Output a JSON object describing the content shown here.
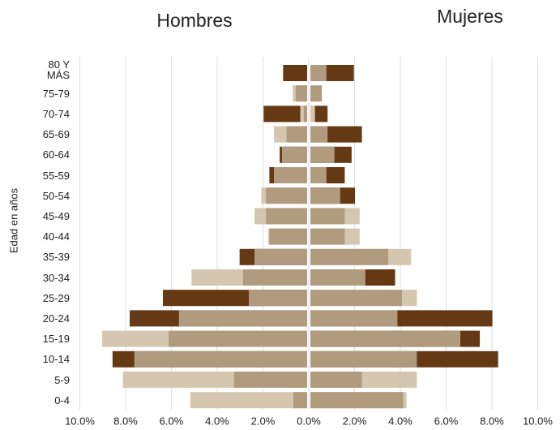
{
  "chart_data": {
    "type": "pyramid",
    "left_title": "Hombres",
    "right_title": "Mujeres",
    "y_label": "Edad en años",
    "categories": [
      "80 Y MÁS",
      "75-79",
      "70-74",
      "65-69",
      "60-64",
      "55-59",
      "50-54",
      "45-49",
      "40-44",
      "35-39",
      "30-34",
      "25-29",
      "20-24",
      "15-19",
      "10-14",
      "5-9",
      "0-4"
    ],
    "left_series": [
      {
        "color": "#d5c6b0",
        "values": [
          null,
          0.63,
          0.3,
          1.45,
          null,
          null,
          2.0,
          2.3,
          1.7,
          null,
          5.05,
          null,
          null,
          8.95,
          null,
          8.05,
          5.1
        ]
      },
      {
        "color": "#b19b7f",
        "values": [
          null,
          0.5,
          0.15,
          0.9,
          1.1,
          1.45,
          1.8,
          1.8,
          1.65,
          2.3,
          2.8,
          2.55,
          5.6,
          6.05,
          7.55,
          3.2,
          0.6
        ]
      },
      {
        "color": "#643913",
        "values": [
          1.05,
          null,
          1.9,
          null,
          1.2,
          1.65,
          null,
          null,
          null,
          2.95,
          null,
          6.3,
          7.75,
          null,
          8.5,
          null,
          null
        ]
      }
    ],
    "right_series": [
      {
        "color": "#d5c6b0",
        "values": [
          null,
          null,
          0.2,
          null,
          null,
          null,
          null,
          2.15,
          2.15,
          4.4,
          null,
          4.65,
          null,
          null,
          null,
          4.65,
          4.2
        ]
      },
      {
        "color": "#b19b7f",
        "values": [
          0.7,
          0.5,
          null,
          0.75,
          1.05,
          0.7,
          1.3,
          1.5,
          1.5,
          3.4,
          2.4,
          4.0,
          3.8,
          6.55,
          4.65,
          2.25,
          4.05
        ]
      },
      {
        "color": "#643913",
        "values": [
          1.9,
          null,
          0.75,
          2.25,
          1.8,
          1.5,
          1.95,
          null,
          null,
          null,
          3.7,
          null,
          7.95,
          7.4,
          8.2,
          null,
          null
        ]
      }
    ],
    "xlim": [
      -10,
      10
    ],
    "xticks": [
      {
        "value": -10,
        "label": "10.0%"
      },
      {
        "value": -8,
        "label": "8.0%"
      },
      {
        "value": -6,
        "label": "6.0%"
      },
      {
        "value": -4,
        "label": "4.0%"
      },
      {
        "value": -2,
        "label": "2.0%"
      },
      {
        "value": 0,
        "label": "0.0%"
      },
      {
        "value": 2,
        "label": "2.0%"
      },
      {
        "value": 4,
        "label": "4.0%"
      },
      {
        "value": 6,
        "label": "6.0%"
      },
      {
        "value": 8,
        "label": "8.0%"
      },
      {
        "value": 10,
        "label": "10.0%"
      }
    ],
    "grid": true
  }
}
